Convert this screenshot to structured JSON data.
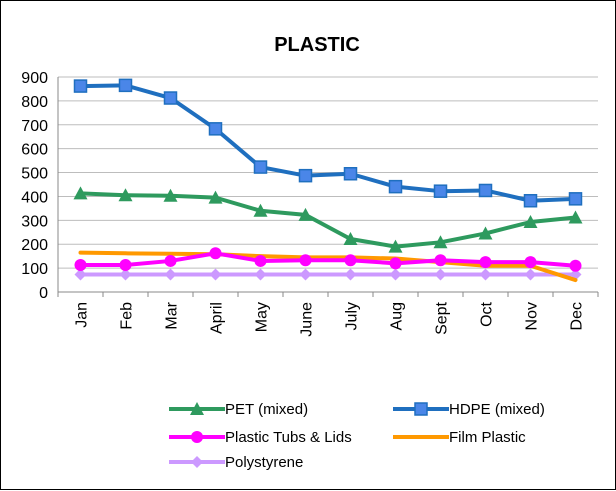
{
  "chart_data": {
    "type": "line",
    "title": "PLASTIC",
    "xlabel": "",
    "ylabel": "",
    "categories": [
      "Jan",
      "Feb",
      "Mar",
      "April",
      "May",
      "June",
      "July",
      "Aug",
      "Sept",
      "Oct",
      "Nov",
      "Dec"
    ],
    "ylim": [
      0,
      900
    ],
    "yticks": [
      0,
      100,
      200,
      300,
      400,
      500,
      600,
      700,
      800,
      900
    ],
    "grid": true,
    "legend_position": "bottom",
    "series": [
      {
        "name": "PET (mixed)",
        "color": "#2E9A5E",
        "marker": "triangle",
        "values": [
          413,
          405,
          403,
          395,
          340,
          323,
          222,
          190,
          208,
          245,
          293,
          312
        ]
      },
      {
        "name": "HDPE (mixed)",
        "color": "#1F6FBF",
        "marker": "square",
        "values": [
          862,
          865,
          812,
          683,
          523,
          487,
          495,
          441,
          422,
          425,
          382,
          390
        ]
      },
      {
        "name": "Plastic Tubs & Lids",
        "color": "#FF00FF",
        "marker": "circle",
        "values": [
          113,
          113,
          130,
          162,
          130,
          133,
          133,
          120,
          133,
          125,
          125,
          110
        ]
      },
      {
        "name": "Film Plastic",
        "color": "#FF9900",
        "marker": "none",
        "values": [
          165,
          162,
          160,
          158,
          150,
          145,
          145,
          140,
          125,
          110,
          110,
          50
        ]
      },
      {
        "name": "Polystyrene",
        "color": "#CC99FF",
        "marker": "diamond",
        "values": [
          73,
          73,
          73,
          73,
          73,
          73,
          73,
          73,
          73,
          73,
          73,
          73
        ]
      }
    ]
  }
}
